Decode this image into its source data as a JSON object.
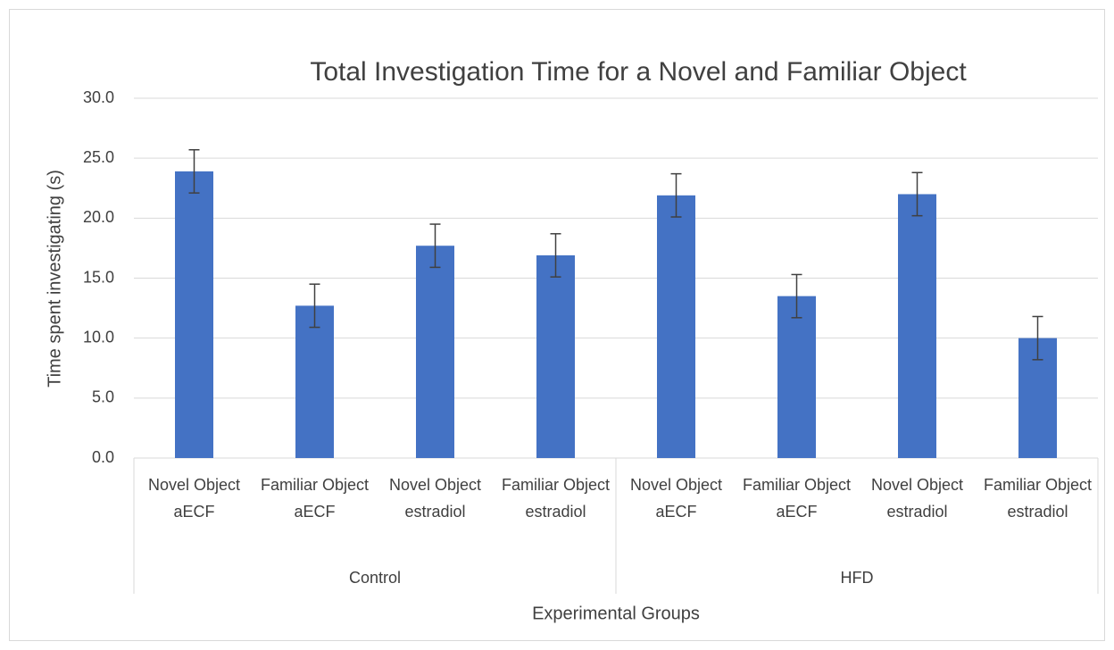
{
  "chart_data": {
    "type": "bar",
    "title": "Total Investigation Time for a Novel and Familiar Object",
    "x_label": "Experimental Groups",
    "y_label": "Time spent investigating (s)",
    "categories": [
      "Novel Object aECF",
      "Familiar Object aECF",
      "Novel Object estradiol",
      "Familiar Object estradiol",
      "Novel Object aECF",
      "Familiar Object aECF",
      "Novel Object estradiol",
      "Familiar Object estradiol"
    ],
    "groups": [
      "Control",
      "HFD"
    ],
    "values": [
      23.9,
      12.7,
      17.7,
      16.9,
      21.9,
      13.5,
      22.0,
      10.0
    ],
    "errors": [
      1.8,
      1.8,
      1.8,
      1.8,
      1.8,
      1.8,
      1.8,
      1.8
    ],
    "color": "#4472c4",
    "ylim": [
      0,
      30
    ],
    "yticks": [
      {
        "value": 0,
        "label": "0.0"
      },
      {
        "value": 5,
        "label": "5.0"
      },
      {
        "value": 10,
        "label": "10.0"
      },
      {
        "value": 15,
        "label": "15.0"
      },
      {
        "value": 20,
        "label": "20.0"
      },
      {
        "value": 25,
        "label": "25.0"
      },
      {
        "value": 30,
        "label": "30.0"
      }
    ],
    "grid": true
  }
}
